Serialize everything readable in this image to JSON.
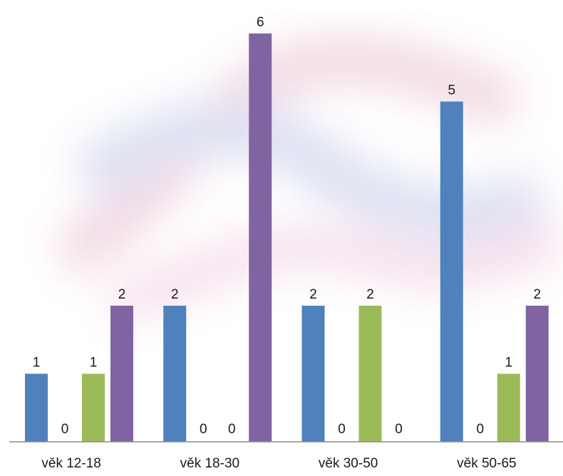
{
  "chart_data": {
    "type": "bar",
    "categories": [
      "věk 12-18",
      "věk 18-30",
      "věk 30-50",
      "věk 50-65"
    ],
    "series": [
      {
        "values": [
          1,
          2,
          2,
          5
        ],
        "color": "#4f81bd"
      },
      {
        "values": [
          0,
          0,
          0,
          0
        ],
        "color": "#c0504d"
      },
      {
        "values": [
          1,
          0,
          2,
          1
        ],
        "color": "#9bbb59"
      },
      {
        "values": [
          2,
          6,
          0,
          2
        ],
        "color": "#8064a2"
      }
    ],
    "ylim": [
      0,
      6
    ],
    "data_labels": true,
    "grid": false,
    "legend": "none"
  }
}
